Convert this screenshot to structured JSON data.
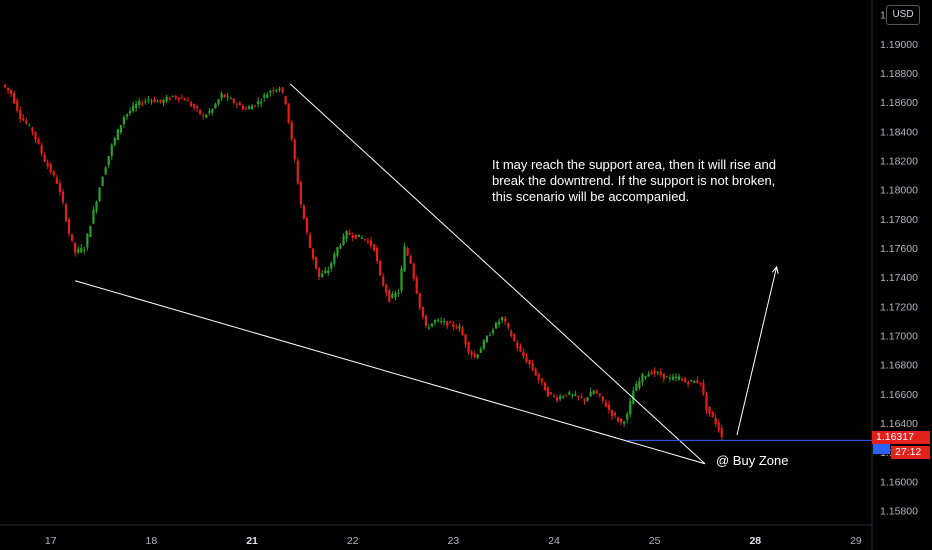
{
  "currency": "USD",
  "last_price": "1.16317",
  "countdown": "27:12",
  "annotation": {
    "lines": [
      "It may reach the support area, then it will rise and",
      "break the downtrend. If the support is not broken,",
      "this scenario will be accompanied."
    ],
    "buy_zone": "@ Buy Zone"
  },
  "colors": {
    "background": "#000000",
    "up": "#2ca02c",
    "down": "#e3201b",
    "trendline": "#ffffff",
    "support_line": "#2962ff",
    "price_tag": "#e3201b"
  },
  "chart_data": {
    "type": "candlestick",
    "y_ticks": [
      "1.19200",
      "1.19000",
      "1.18800",
      "1.18600",
      "1.18400",
      "1.18200",
      "1.18000",
      "1.17800",
      "1.17600",
      "1.17400",
      "1.17200",
      "1.17000",
      "1.16800",
      "1.16600",
      "1.16400",
      "1.16200",
      "1.16000",
      "1.15800"
    ],
    "ylim": [
      1.157,
      1.193
    ],
    "x_ticks": [
      {
        "label": "17",
        "day": 17,
        "bold": false
      },
      {
        "label": "18",
        "day": 18,
        "bold": false
      },
      {
        "label": "21",
        "day": 21,
        "bold": true
      },
      {
        "label": "22",
        "day": 22,
        "bold": false
      },
      {
        "label": "23",
        "day": 23,
        "bold": false
      },
      {
        "label": "24",
        "day": 24,
        "bold": false
      },
      {
        "label": "25",
        "day": 25,
        "bold": false
      },
      {
        "label": "28",
        "day": 28,
        "bold": true
      },
      {
        "label": "29",
        "day": 29,
        "bold": false
      }
    ],
    "price_path": [
      [
        0,
        1.1872
      ],
      [
        3,
        1.1866
      ],
      [
        6,
        1.185
      ],
      [
        10,
        1.184
      ],
      [
        14,
        1.182
      ],
      [
        18,
        1.1805
      ],
      [
        20,
        1.179
      ],
      [
        22,
        1.177
      ],
      [
        24,
        1.1757
      ],
      [
        27,
        1.176
      ],
      [
        30,
        1.1785
      ],
      [
        33,
        1.181
      ],
      [
        36,
        1.183
      ],
      [
        40,
        1.185
      ],
      [
        44,
        1.1858
      ],
      [
        48,
        1.1862
      ],
      [
        52,
        1.186
      ],
      [
        56,
        1.1864
      ],
      [
        60,
        1.1862
      ],
      [
        63,
        1.1856
      ],
      [
        66,
        1.185
      ],
      [
        69,
        1.1855
      ],
      [
        72,
        1.1865
      ],
      [
        76,
        1.186
      ],
      [
        80,
        1.1855
      ],
      [
        84,
        1.186
      ],
      [
        88,
        1.1868
      ],
      [
        91,
        1.187
      ],
      [
        93,
        1.186
      ],
      [
        96,
        1.182
      ],
      [
        98,
        1.179
      ],
      [
        101,
        1.176
      ],
      [
        104,
        1.174
      ],
      [
        107,
        1.1745
      ],
      [
        110,
        1.176
      ],
      [
        113,
        1.177
      ],
      [
        116,
        1.1768
      ],
      [
        119,
        1.1766
      ],
      [
        122,
        1.176
      ],
      [
        124,
        1.174
      ],
      [
        127,
        1.1725
      ],
      [
        130,
        1.173
      ],
      [
        132,
        1.176
      ],
      [
        134,
        1.175
      ],
      [
        137,
        1.172
      ],
      [
        139,
        1.1705
      ],
      [
        142,
        1.171
      ],
      [
        146,
        1.1708
      ],
      [
        150,
        1.1705
      ],
      [
        153,
        1.169
      ],
      [
        155,
        1.1685
      ],
      [
        158,
        1.1695
      ],
      [
        161,
        1.1705
      ],
      [
        164,
        1.1712
      ],
      [
        167,
        1.17
      ],
      [
        170,
        1.1688
      ],
      [
        173,
        1.168
      ],
      [
        176,
        1.167
      ],
      [
        179,
        1.166
      ],
      [
        182,
        1.1657
      ],
      [
        185,
        1.166
      ],
      [
        188,
        1.1658
      ],
      [
        191,
        1.1656
      ],
      [
        194,
        1.1662
      ],
      [
        197,
        1.1655
      ],
      [
        200,
        1.1646
      ],
      [
        203,
        1.164
      ],
      [
        205,
        1.1645
      ],
      [
        207,
        1.1662
      ],
      [
        210,
        1.1672
      ],
      [
        213,
        1.1675
      ],
      [
        216,
        1.1673
      ],
      [
        219,
        1.167
      ],
      [
        222,
        1.1671
      ],
      [
        224,
        1.1668
      ],
      [
        227,
        1.16685
      ],
      [
        229,
        1.1668
      ],
      [
        231,
        1.165
      ],
      [
        234,
        1.164
      ],
      [
        236,
        1.16317
      ]
    ],
    "trendlines": [
      {
        "from": [
          23,
          1.17375
        ],
        "to": [
          229.5,
          1.1612
        ]
      },
      {
        "from": [
          93.5,
          1.18725
        ],
        "to": [
          229.5,
          1.1612
        ]
      }
    ],
    "support_level": 1.1628,
    "projection_arrow": {
      "from": [
        240,
        1.16317
      ],
      "to": [
        253,
        1.1747
      ]
    },
    "bars_per_day": 33,
    "day_anchor": {
      "bar": 15,
      "day": 17
    }
  }
}
